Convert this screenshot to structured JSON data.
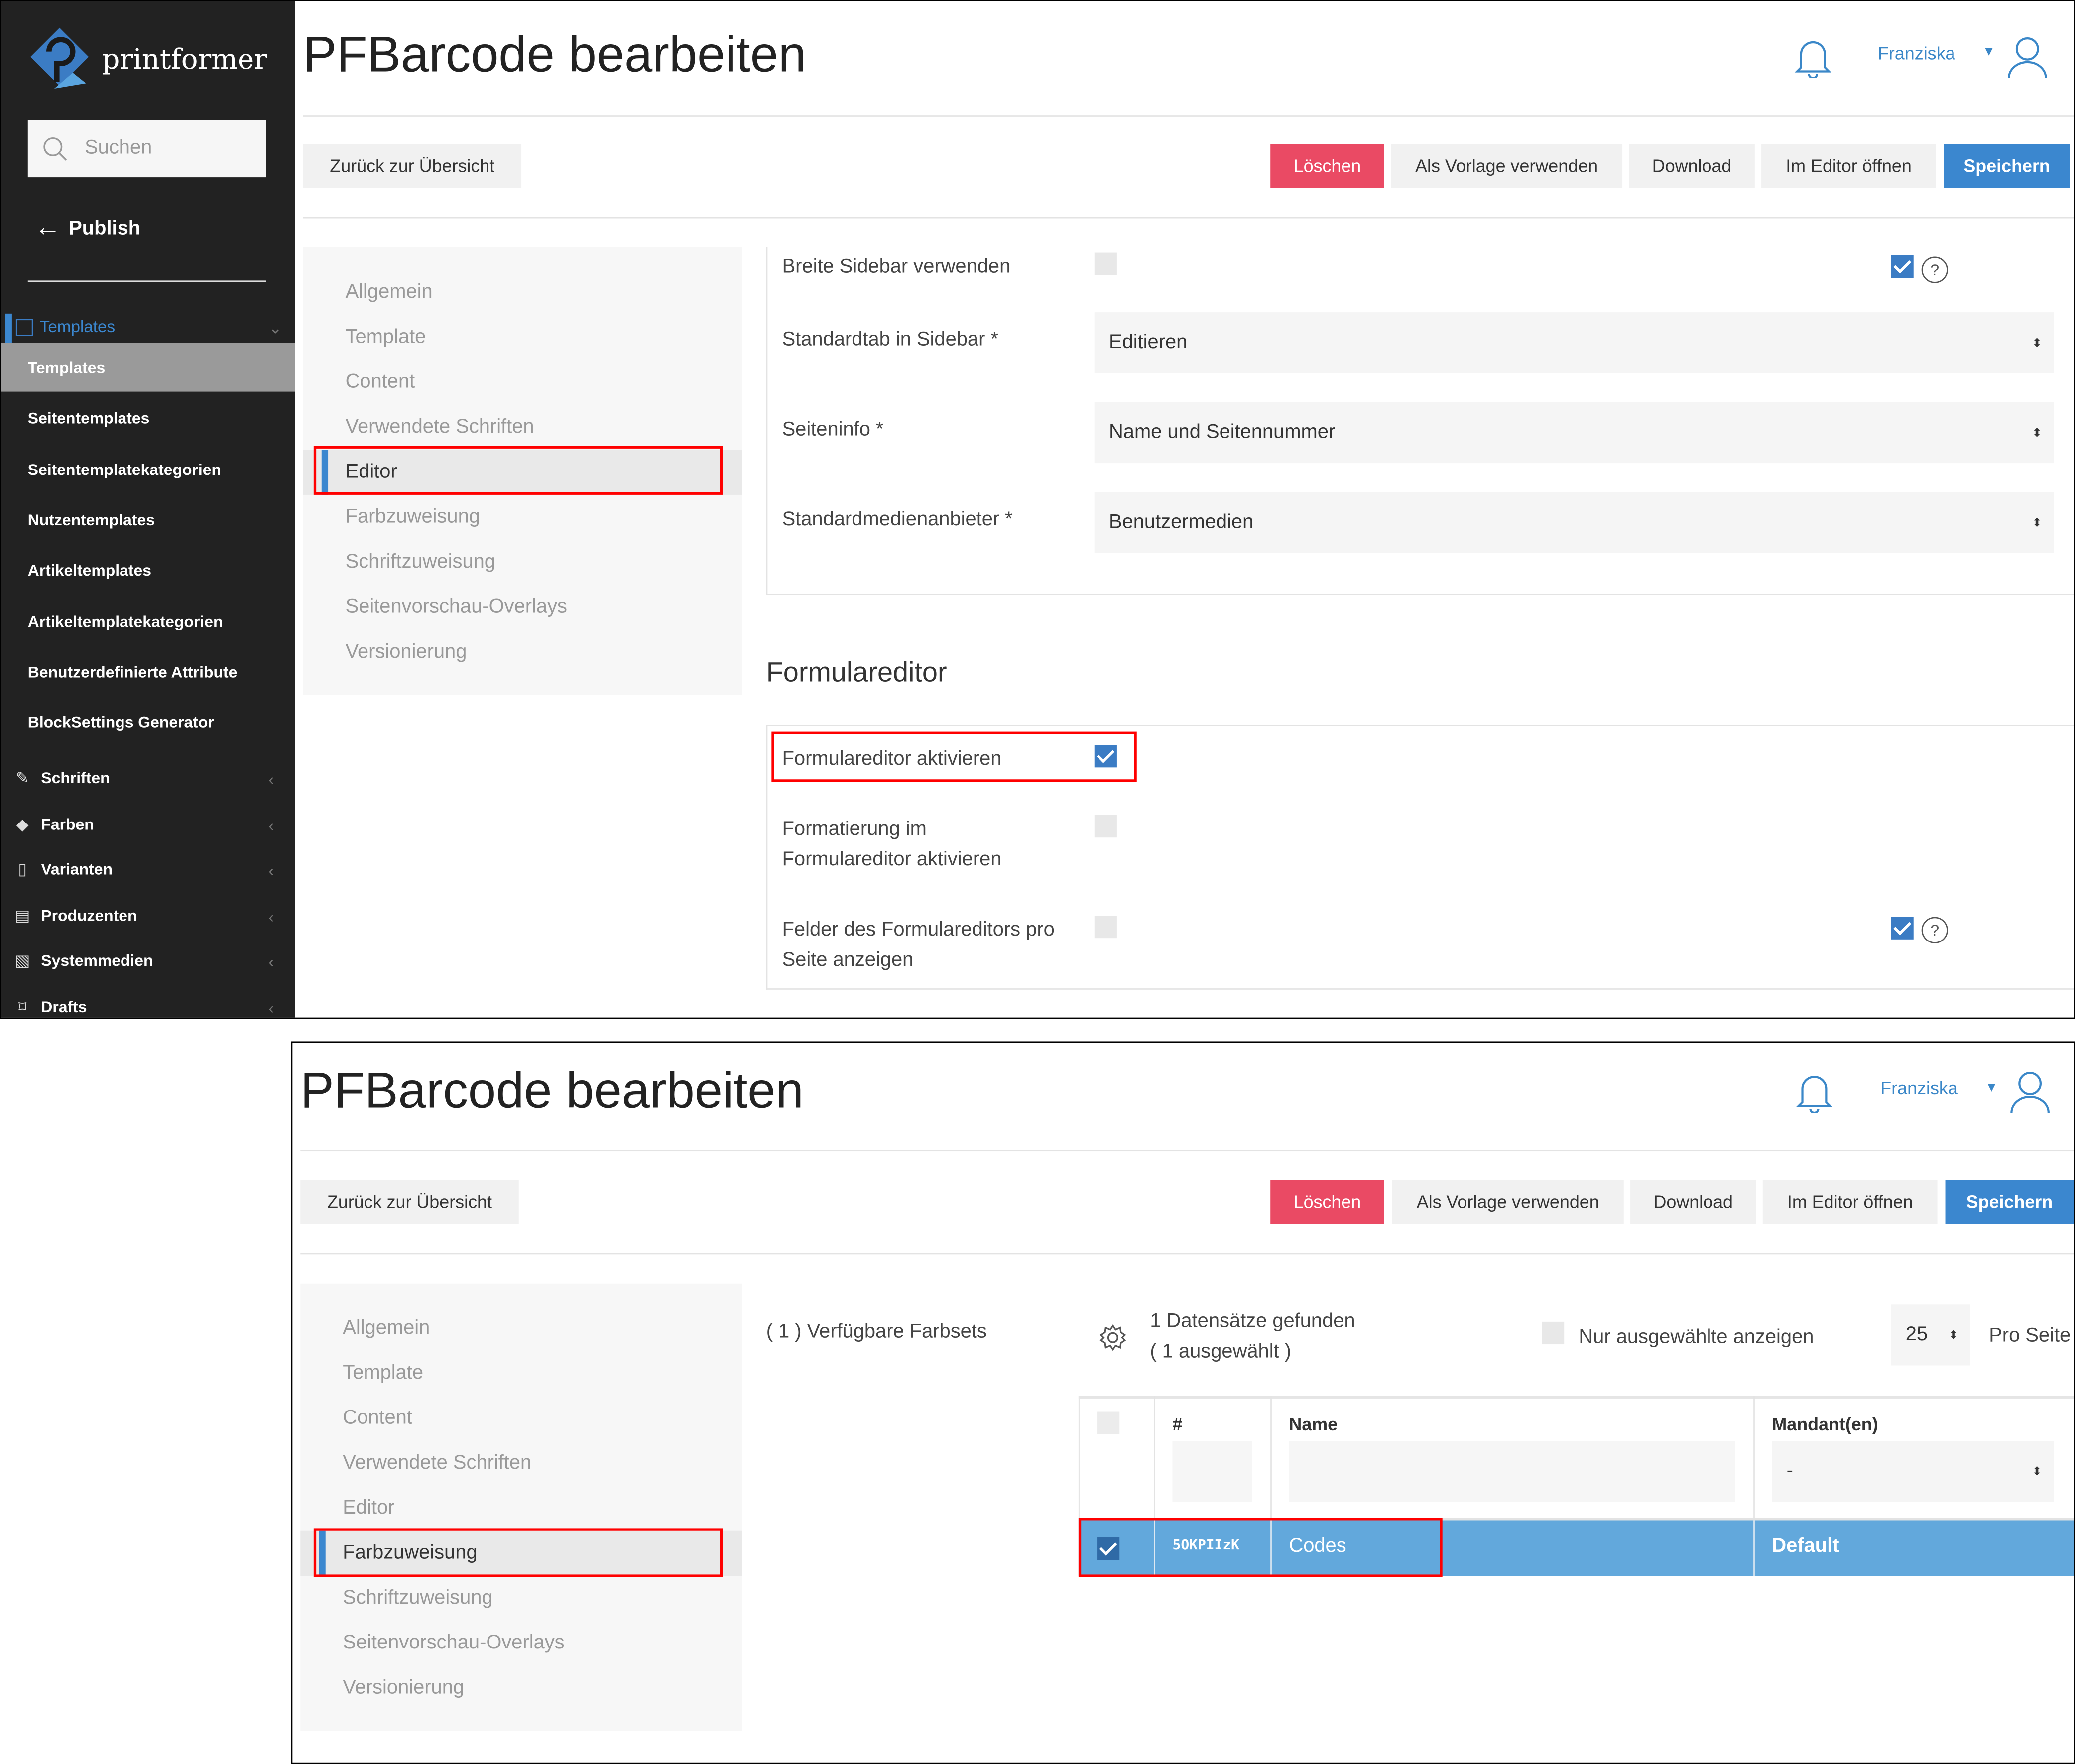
{
  "app": {
    "logo_text": "printformer"
  },
  "sidebar": {
    "search_placeholder": "Suchen",
    "back_label": "Publish",
    "section_label": "Templates",
    "items": [
      "Templates",
      "Seitentemplates",
      "Seitentemplatekategorien",
      "Nutzentemplates",
      "Artikeltemplates",
      "Artikeltemplatekategorien",
      "Benutzerdefinierte Attribute",
      "BlockSettings Generator"
    ],
    "groups": [
      {
        "label": "Schriften",
        "icon": "pencil-icon"
      },
      {
        "label": "Farben",
        "icon": "paint-bucket-icon"
      },
      {
        "label": "Varianten",
        "icon": "document-icon"
      },
      {
        "label": "Produzenten",
        "icon": "calendar-icon"
      },
      {
        "label": "Systemmedien",
        "icon": "image-icon"
      },
      {
        "label": "Drafts",
        "icon": "bookmark-icon"
      }
    ]
  },
  "header": {
    "title": "PFBarcode bearbeiten",
    "user": "Franziska"
  },
  "toolbar": {
    "back": "Zurück zur Übersicht",
    "delete": "Löschen",
    "use_template": "Als Vorlage verwenden",
    "download": "Download",
    "open_editor": "Im Editor öffnen",
    "save": "Speichern"
  },
  "nav": [
    "Allgemein",
    "Template",
    "Content",
    "Verwendete Schriften",
    "Editor",
    "Farbzuweisung",
    "Schriftzuweisung",
    "Seitenvorschau-Overlays",
    "Versionierung"
  ],
  "editor_panel": {
    "active_nav": "Editor",
    "rows": [
      {
        "label": "Breite Sidebar verwenden",
        "checked": false,
        "inherit_checked": true
      },
      {
        "label": "Standardtab in Sidebar *",
        "value": "Editieren"
      },
      {
        "label": "Seiteninfo *",
        "value": "Name und Seitennummer"
      },
      {
        "label": "Standardmedienanbieter *",
        "value": "Benutzermedien"
      }
    ],
    "form_heading": "Formulareditor",
    "form_rows": [
      {
        "label": "Formulareditor aktivieren",
        "checked": true
      },
      {
        "label_l1": "Formatierung im",
        "label_l2": "Formulareditor aktivieren",
        "checked": false
      },
      {
        "label_l1": "Felder des Formulareditors pro",
        "label_l2": "Seite anzeigen",
        "checked": false,
        "inherit_checked": true
      }
    ],
    "help": "?"
  },
  "colors_panel": {
    "active_nav": "Farbzuweisung",
    "available": "( 1 ) Verfügbare Farbsets",
    "found": "1 Datensätze gefunden",
    "selected": "( 1 ausgewählt )",
    "only_selected": "Nur ausgewählte anzeigen",
    "per_page_value": "25",
    "per_page_label": "Pro Seite",
    "columns": [
      "#",
      "Name",
      "Mandant(en)"
    ],
    "mandant_filter": "-",
    "rows": [
      {
        "checked": true,
        "id": "5OKPIIzK",
        "name": "Codes",
        "mandant": "Default"
      }
    ]
  },
  "colors": {
    "accent": "#3b87cf",
    "danger": "#ea4a64",
    "row_selected": "#62a8dc",
    "sidebar": "#222222"
  }
}
